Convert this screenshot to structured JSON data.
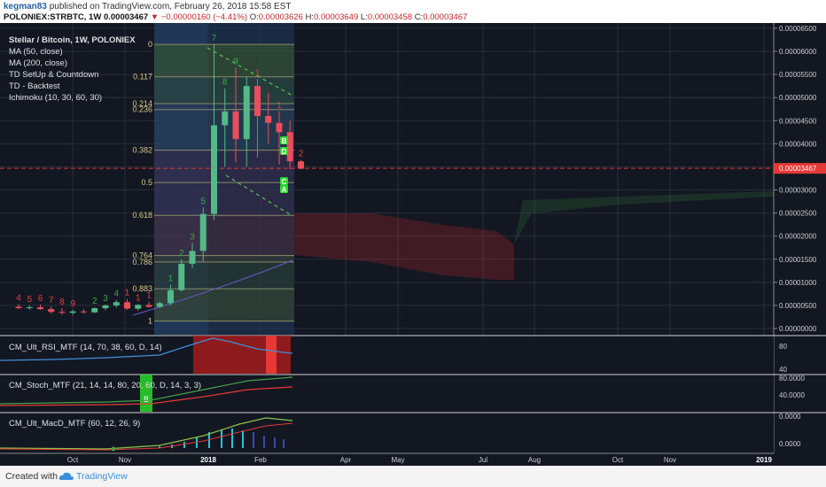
{
  "header": {
    "user": "kegman83",
    "published_text": "published on TradingView.com, February 26, 2018 15:58 EST",
    "symbol": "POLONIEX:STRBTC, 1W",
    "last_price": "0.00003467",
    "change": "−0.00000160 (−4.41%)",
    "o_label": "O:",
    "o_value": "0.00003626",
    "h_label": "H:",
    "h_value": "0.00003649",
    "l_label": "L:",
    "l_value": "0.00003458",
    "c_label": "C:",
    "c_value": "0.00003467"
  },
  "legend": {
    "title": "Stellar / Bitcoin, 1W, POLONIEX",
    "items": [
      "MA (50, close)",
      "MA (200, close)",
      "TD SetUp & Countdown",
      "TD - Backtest",
      "Ichimoku (10, 30, 60, 30)"
    ]
  },
  "indicators": {
    "rsi": "CM_Ult_RSI_MTF (14, 70, 38, 60, D, 14)",
    "stoch": "CM_Stoch_MTF (21, 14, 14, 80, 20, 60, D, 14, 3, 3)",
    "macd": "CM_Ult_MacD_MTF (60, 12, 26, 9)"
  },
  "footer": {
    "created_with": "Created with",
    "brand": "TradingView"
  },
  "colors": {
    "background": "#131722",
    "up": "#53b987",
    "down": "#eb4d5c",
    "fib_green": "#2e5b2e",
    "price_line": "#e53935",
    "price_tag": "#e53935"
  },
  "chart_data": {
    "type": "candlestick",
    "price_axis_ticks": [
      "0.00006500",
      "0.00006000",
      "0.00005500",
      "0.00005000",
      "0.00004500",
      "0.00004000",
      "0.00003500",
      "0.00003000",
      "0.00002500",
      "0.00002000",
      "0.00001500",
      "0.00001000",
      "0.00000500",
      "0.00000000"
    ],
    "current_price_label": "0.00003467",
    "x_ticks": [
      "Oct",
      "Nov",
      "2018",
      "Feb",
      "Apr",
      "May",
      "Jul",
      "Aug",
      "Oct",
      "Nov",
      "2019"
    ],
    "fib_levels": [
      {
        "label": "0",
        "value": 6.15e-05
      },
      {
        "label": "0.117",
        "value": 5.45e-05
      },
      {
        "label": "0.214",
        "value": 4.87e-05
      },
      {
        "label": "0.236",
        "value": 4.74e-05
      },
      {
        "label": "0.382",
        "value": 3.86e-05
      },
      {
        "label": "0.5",
        "value": 3.16e-05
      },
      {
        "label": "0.618",
        "value": 2.45e-05
      },
      {
        "label": "0.764",
        "value": 1.58e-05
      },
      {
        "label": "0.786",
        "value": 1.44e-05
      },
      {
        "label": "0.883",
        "value": 8.6e-06
      },
      {
        "label": "1",
        "value": 1.6e-06
      }
    ],
    "candles": [
      {
        "t": 0,
        "o": 4.7e-06,
        "h": 5.3e-06,
        "l": 4.2e-06,
        "c": 4.4e-06
      },
      {
        "t": 1,
        "o": 4.4e-06,
        "h": 5e-06,
        "l": 4.1e-06,
        "c": 4.6e-06
      },
      {
        "t": 2,
        "o": 4.6e-06,
        "h": 5.2e-06,
        "l": 4e-06,
        "c": 4.2e-06
      },
      {
        "t": 3,
        "o": 4.2e-06,
        "h": 4.8e-06,
        "l": 3.2e-06,
        "c": 3.6e-06
      },
      {
        "t": 4,
        "o": 3.6e-06,
        "h": 4.4e-06,
        "l": 3e-06,
        "c": 3.4e-06
      },
      {
        "t": 5,
        "o": 3.4e-06,
        "h": 4e-06,
        "l": 3e-06,
        "c": 3.7e-06
      },
      {
        "t": 6,
        "o": 3.7e-06,
        "h": 4.2e-06,
        "l": 3.2e-06,
        "c": 3.5e-06
      },
      {
        "t": 7,
        "o": 3.5e-06,
        "h": 4.6e-06,
        "l": 3.3e-06,
        "c": 4.4e-06
      },
      {
        "t": 8,
        "o": 4.4e-06,
        "h": 5.2e-06,
        "l": 4e-06,
        "c": 5e-06
      },
      {
        "t": 9,
        "o": 5e-06,
        "h": 6.2e-06,
        "l": 4.5e-06,
        "c": 5.7e-06
      },
      {
        "t": 10,
        "o": 5.7e-06,
        "h": 6.4e-06,
        "l": 4.1e-06,
        "c": 4.3e-06
      },
      {
        "t": 11,
        "o": 4.3e-06,
        "h": 5.3e-06,
        "l": 3.9e-06,
        "c": 5.1e-06
      },
      {
        "t": 12,
        "o": 5.1e-06,
        "h": 5.8e-06,
        "l": 4.5e-06,
        "c": 4.7e-06
      },
      {
        "t": 13,
        "o": 4.7e-06,
        "h": 5.8e-06,
        "l": 4.4e-06,
        "c": 5.5e-06
      },
      {
        "t": 14,
        "o": 5.5e-06,
        "h": 9.5e-06,
        "l": 5e-06,
        "c": 8.3e-06
      },
      {
        "t": 15,
        "o": 8.3e-06,
        "h": 1.5e-05,
        "l": 8e-06,
        "c": 1.4e-05
      },
      {
        "t": 16,
        "o": 1.4e-05,
        "h": 1.85e-05,
        "l": 1.3e-05,
        "c": 1.68e-05
      },
      {
        "t": 17,
        "o": 1.68e-05,
        "h": 2.62e-05,
        "l": 1.45e-05,
        "c": 2.48e-05
      },
      {
        "t": 18,
        "o": 2.48e-05,
        "h": 6.15e-05,
        "l": 2.35e-05,
        "c": 4.4e-05
      },
      {
        "t": 19,
        "o": 4.4e-05,
        "h": 5.2e-05,
        "l": 3.5e-05,
        "c": 4.7e-05
      },
      {
        "t": 20,
        "o": 4.7e-05,
        "h": 5.65e-05,
        "l": 3.6e-05,
        "c": 4.1e-05
      },
      {
        "t": 21,
        "o": 4.1e-05,
        "h": 5.45e-05,
        "l": 3.5e-05,
        "c": 5.25e-05
      },
      {
        "t": 22,
        "o": 5.25e-05,
        "h": 5.4e-05,
        "l": 3.7e-05,
        "c": 4.6e-05
      },
      {
        "t": 23,
        "o": 4.6e-05,
        "h": 5.1e-05,
        "l": 4e-05,
        "c": 4.45e-05
      },
      {
        "t": 24,
        "o": 4.45e-05,
        "h": 4.7e-05,
        "l": 3.55e-05,
        "c": 4.25e-05
      },
      {
        "t": 25,
        "o": 4.25e-05,
        "h": 4.5e-05,
        "l": 3.45e-05,
        "c": 3.62e-05
      },
      {
        "t": 26,
        "o": 3.62e-05,
        "h": 3.65e-05,
        "l": 3.45e-05,
        "c": 3.46e-05
      }
    ],
    "td_numbers": [
      {
        "t": 0,
        "label": "4",
        "color": "red"
      },
      {
        "t": 1,
        "label": "5",
        "color": "red"
      },
      {
        "t": 2,
        "label": "6",
        "color": "red"
      },
      {
        "t": 3,
        "label": "7",
        "color": "red"
      },
      {
        "t": 4,
        "label": "8",
        "color": "red"
      },
      {
        "t": 5,
        "label": "9",
        "color": "red"
      },
      {
        "t": 7,
        "label": "2",
        "color": "green"
      },
      {
        "t": 8,
        "label": "3",
        "color": "green"
      },
      {
        "t": 9,
        "label": "4",
        "color": "green"
      },
      {
        "t": 10,
        "label": "1",
        "color": "red"
      },
      {
        "t": 11,
        "label": "1",
        "color": "red"
      },
      {
        "t": 12,
        "label": "1",
        "color": "red"
      },
      {
        "t": 14,
        "label": "1",
        "color": "green"
      },
      {
        "t": 15,
        "label": "2",
        "color": "green"
      },
      {
        "t": 16,
        "label": "3",
        "color": "green"
      },
      {
        "t": 17,
        "label": "5",
        "color": "green"
      },
      {
        "t": 18,
        "label": "7",
        "color": "green"
      },
      {
        "t": 19,
        "label": "8",
        "color": "green"
      },
      {
        "t": 20,
        "label": "9",
        "color": "green"
      },
      {
        "t": 22,
        "label": "1",
        "color": "red"
      },
      {
        "t": 24,
        "label": "1",
        "color": "red"
      },
      {
        "t": 26,
        "label": "2",
        "color": "red"
      }
    ],
    "rsi_axis": [
      "80",
      "40"
    ],
    "stoch_axis": [
      "80.0000",
      "40.0000"
    ],
    "macd_axis": [
      "0.0000",
      "0.0000"
    ],
    "signal_badges": [
      "B",
      "D",
      "C",
      "A",
      "B"
    ]
  }
}
